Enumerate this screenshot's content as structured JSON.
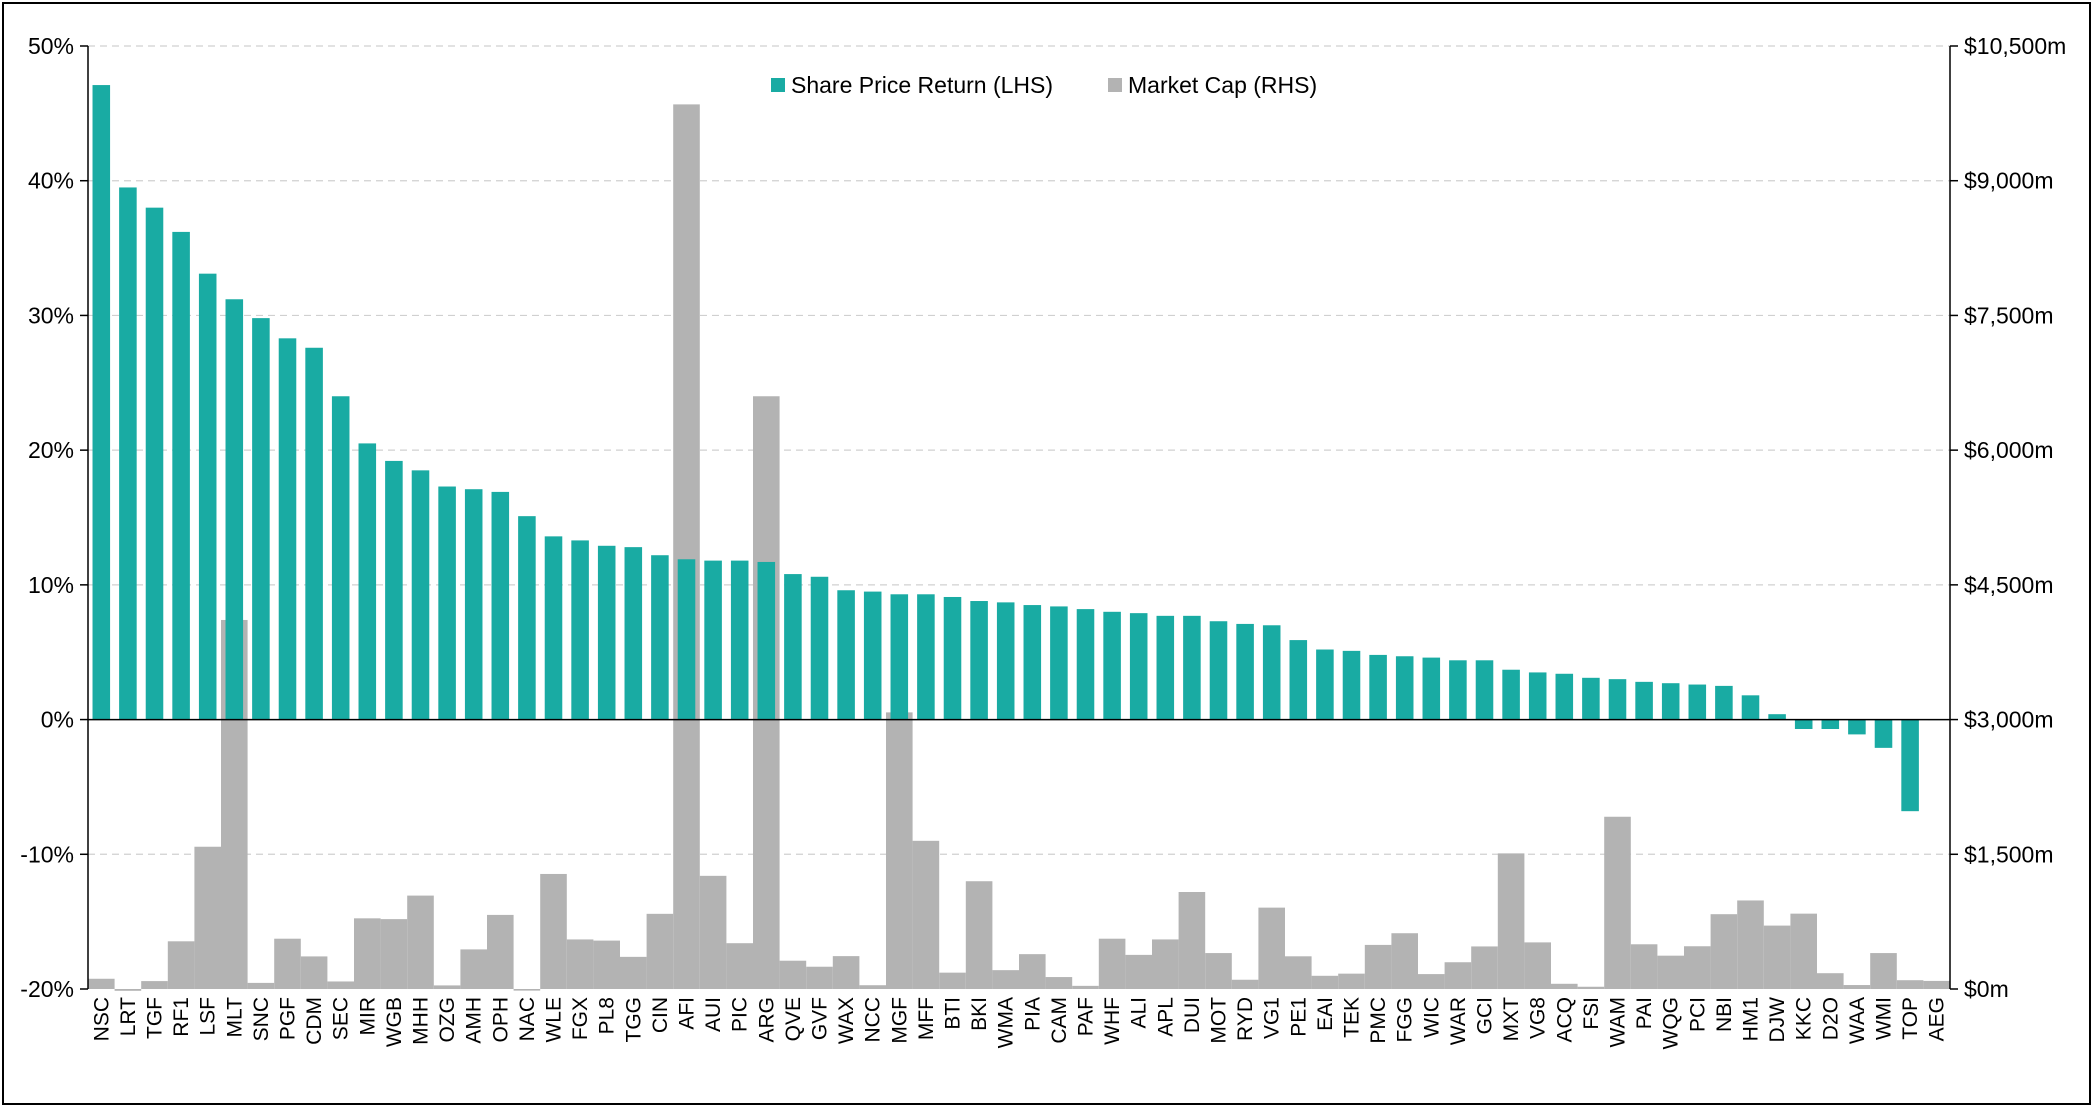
{
  "chart_data": {
    "type": "bar",
    "title": "",
    "xlabel": "",
    "ylabel": "",
    "y2label": "",
    "grid": true,
    "legend_position": "top-center",
    "categories": [
      "NSC",
      "LRT",
      "TGF",
      "RF1",
      "LSF",
      "MLT",
      "SNC",
      "PGF",
      "CDM",
      "SEC",
      "MIR",
      "WGB",
      "MHH",
      "OZG",
      "AMH",
      "OPH",
      "NAC",
      "WLE",
      "FGX",
      "PL8",
      "TGG",
      "CIN",
      "AFI",
      "AUI",
      "PIC",
      "ARG",
      "QVE",
      "GVF",
      "WAX",
      "NCC",
      "MGF",
      "MFF",
      "BTI",
      "BKI",
      "WMA",
      "PIA",
      "CAM",
      "PAF",
      "WHF",
      "ALI",
      "APL",
      "DUI",
      "MOT",
      "RYD",
      "VG1",
      "PE1",
      "EAI",
      "TEK",
      "PMC",
      "FGG",
      "WIC",
      "WAR",
      "GCI",
      "MXT",
      "VG8",
      "ACQ",
      "FSI",
      "WAM",
      "PAI",
      "WQG",
      "PCI",
      "NBI",
      "HM1",
      "DJW",
      "KKC",
      "D2O",
      "WAA",
      "WMI",
      "TOP",
      "AEG"
    ],
    "series": [
      {
        "name": "Share Price Return (LHS)",
        "axis": "left",
        "color": "#19ABA3",
        "values": [
          47.1,
          39.5,
          38.0,
          36.2,
          33.1,
          31.2,
          29.8,
          28.3,
          27.6,
          24.0,
          20.5,
          19.2,
          18.5,
          17.3,
          17.1,
          16.9,
          15.1,
          13.6,
          13.3,
          12.9,
          12.8,
          12.2,
          11.9,
          11.8,
          11.8,
          11.7,
          10.8,
          10.6,
          9.6,
          9.5,
          9.3,
          9.3,
          9.1,
          8.8,
          8.7,
          8.5,
          8.4,
          8.2,
          8.0,
          7.9,
          7.7,
          7.7,
          7.3,
          7.1,
          7.0,
          5.9,
          5.2,
          5.1,
          4.8,
          4.7,
          4.6,
          4.4,
          4.4,
          3.7,
          3.5,
          3.4,
          3.1,
          3.0,
          2.8,
          2.7,
          2.6,
          2.5,
          1.8,
          0.4,
          -0.7,
          -0.7,
          -1.1,
          -2.1,
          -6.8,
          0.0
        ]
      },
      {
        "name": "Market Cap (RHS)",
        "axis": "right",
        "color": "#B3B3B3",
        "values": [
          114,
          -20,
          88,
          531,
          1584,
          4109,
          68,
          560,
          363,
          84,
          787,
          778,
          1040,
          40,
          441,
          825,
          -18,
          1281,
          552,
          539,
          358,
          837,
          9850,
          1260,
          510,
          6600,
          315,
          248,
          366,
          42,
          3080,
          1650,
          182,
          1200,
          210,
          388,
          133,
          35,
          560,
          380,
          552,
          1080,
          400,
          103,
          906,
          364,
          147,
          171,
          491,
          621,
          166,
          298,
          474,
          1510,
          519,
          58,
          25,
          1918,
          498,
          371,
          476,
          833,
          986,
          706,
          839,
          176,
          44,
          400,
          98,
          90
        ]
      }
    ],
    "y_left": {
      "range": [
        -20,
        50
      ],
      "ticks": [
        -20,
        -10,
        0,
        10,
        20,
        30,
        40,
        50
      ],
      "tick_labels": [
        "-20%",
        "-10%",
        "0%",
        "10%",
        "20%",
        "30%",
        "40%",
        "50%"
      ]
    },
    "y_right": {
      "range": [
        0,
        10500
      ],
      "ticks": [
        0,
        1500,
        3000,
        4500,
        6000,
        7500,
        9000,
        10500
      ],
      "tick_labels": [
        "$0m",
        "$1,500m",
        "$3,000m",
        "$4,500m",
        "$6,000m",
        "$7,500m",
        "$9,000m",
        "$10,500m"
      ]
    },
    "colors": {
      "gridline": "#D0D0D0",
      "axis": "#000000"
    }
  }
}
